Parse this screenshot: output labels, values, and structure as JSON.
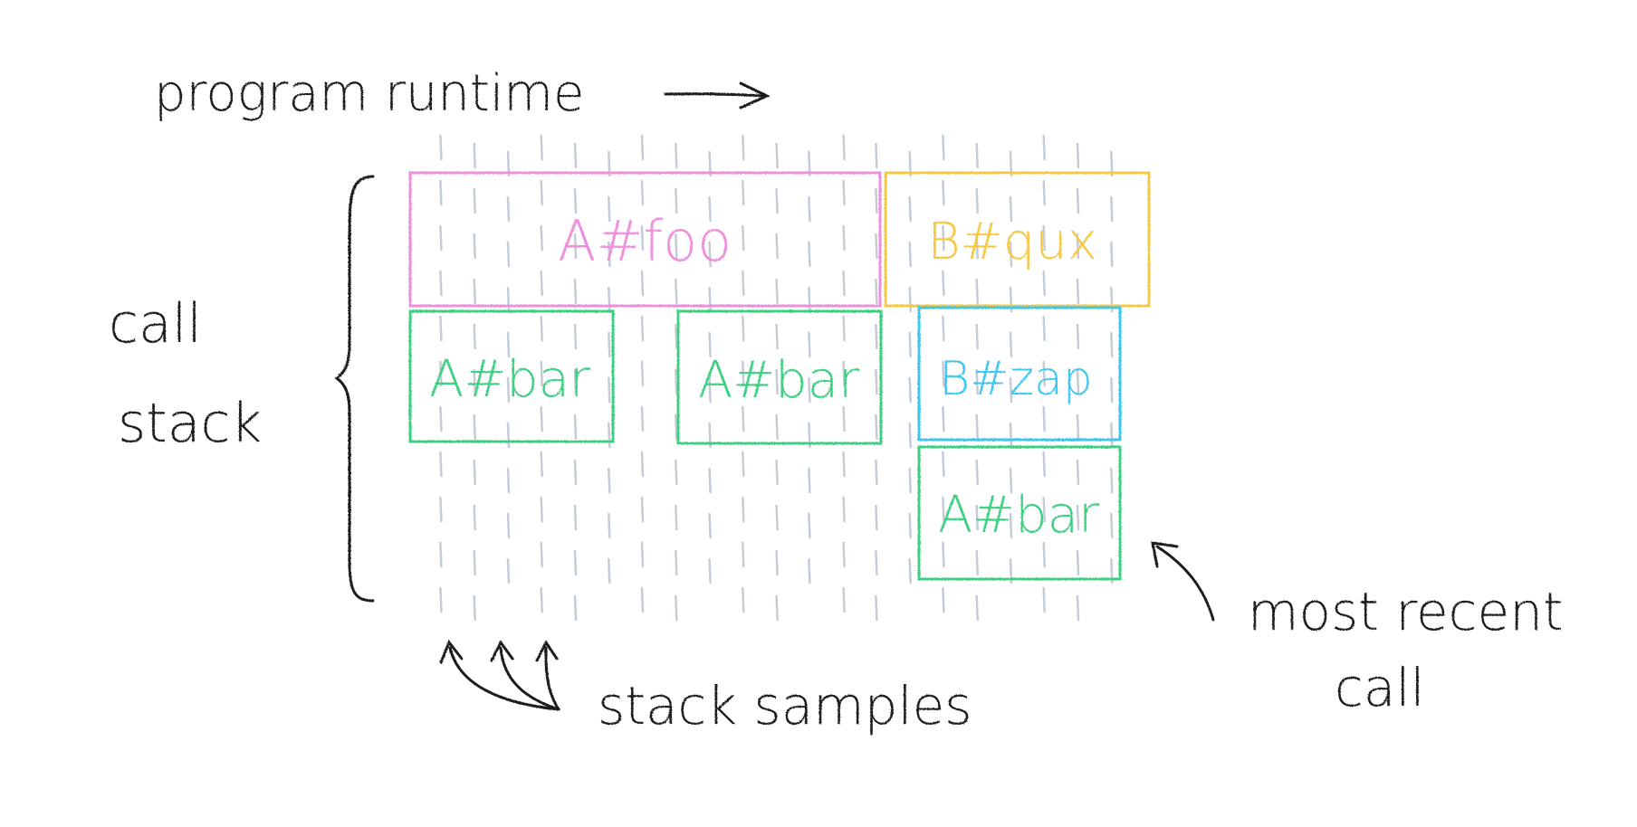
{
  "labels": {
    "program_runtime": "program runtime",
    "call_stack_line1": "call",
    "call_stack_line2": "stack",
    "stack_samples": "stack samples",
    "most_recent_line1": "most recent",
    "most_recent_line2": "call"
  },
  "frames": [
    {
      "label": "A#foo",
      "color": "#ef8fdc"
    },
    {
      "label": "B#qux",
      "color": "#f5c842"
    },
    {
      "label": "A#bar",
      "color": "#3ecf82"
    },
    {
      "label": "A#bar",
      "color": "#3ecf82"
    },
    {
      "label": "B#zap",
      "color": "#3cc6f0"
    },
    {
      "label": "A#bar",
      "color": "#3ecf82"
    }
  ],
  "colors": {
    "ink": "#1a1a1a",
    "sample_lines": "#c5ccd6"
  }
}
